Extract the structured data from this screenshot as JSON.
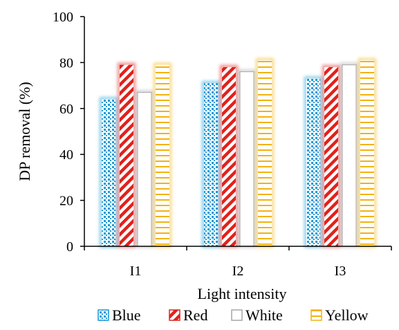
{
  "chart_data": {
    "type": "bar",
    "categories": [
      "I1",
      "I2",
      "I3"
    ],
    "series": [
      {
        "name": "Blue",
        "values": [
          64,
          71,
          73
        ],
        "color": "#1a9ad6",
        "pattern": "dots"
      },
      {
        "name": "Red",
        "values": [
          79,
          78,
          78
        ],
        "color": "#e0211b",
        "pattern": "diagonal"
      },
      {
        "name": "White",
        "values": [
          67,
          76,
          79
        ],
        "color": "#a6a6a6",
        "pattern": "none"
      },
      {
        "name": "Yellow",
        "values": [
          79,
          81,
          81
        ],
        "color": "#f2b20f",
        "pattern": "horizontal"
      }
    ],
    "xlabel": "Light intensity",
    "ylabel": "DP removal (%)",
    "ylim": [
      0,
      100
    ],
    "yticks": [
      0,
      20,
      40,
      60,
      80,
      100
    ],
    "grid": false,
    "legend_position": "bottom"
  }
}
